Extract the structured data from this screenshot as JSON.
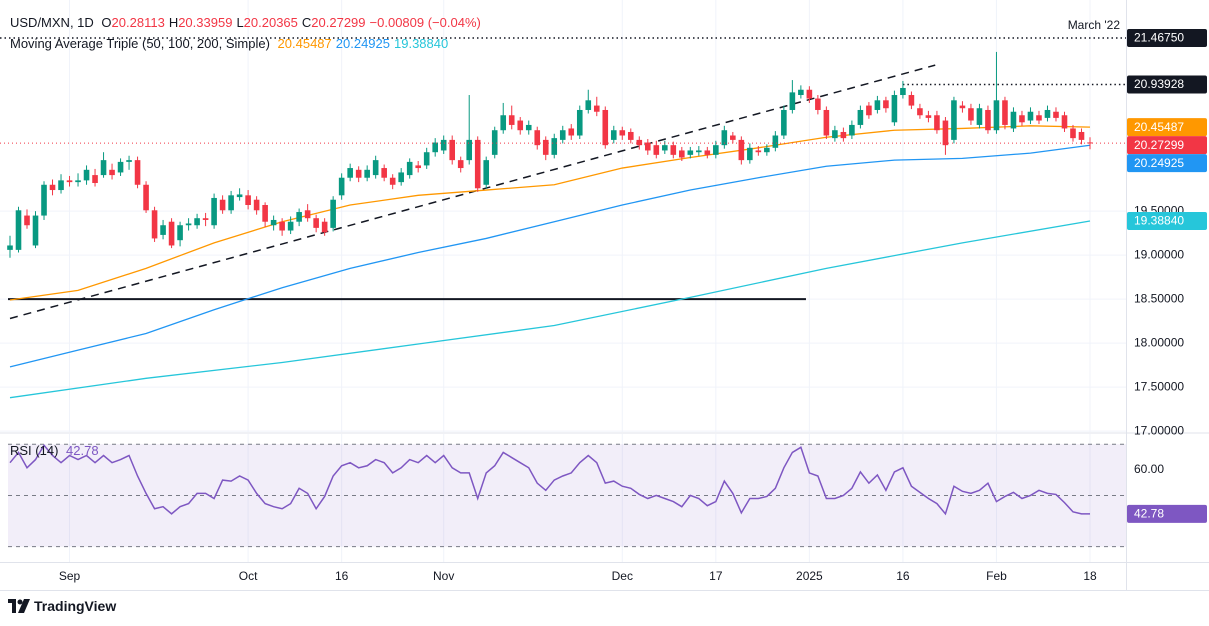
{
  "chart_data": {
    "type": "candlestick",
    "header": {
      "symbol": "USD/MXN, 1D",
      "keys": [
        "O",
        "H",
        "L",
        "C"
      ],
      "change": "−0.00809 (−0.04%)"
    },
    "categories": [
      null,
      null,
      null,
      null,
      null,
      null,
      null,
      "Sep",
      null,
      null,
      null,
      null,
      null,
      null,
      null,
      null,
      null,
      null,
      null,
      null,
      null,
      null,
      null,
      null,
      null,
      null,
      null,
      null,
      "Oct",
      null,
      null,
      null,
      null,
      null,
      null,
      null,
      null,
      null,
      null,
      "16",
      null,
      null,
      null,
      null,
      null,
      null,
      null,
      null,
      null,
      null,
      null,
      "Nov",
      null,
      null,
      null,
      null,
      null,
      null,
      null,
      null,
      null,
      null,
      null,
      null,
      null,
      null,
      null,
      null,
      null,
      null,
      null,
      null,
      "Dec",
      null,
      null,
      null,
      null,
      null,
      null,
      null,
      null,
      null,
      null,
      "17",
      null,
      null,
      null,
      null,
      null,
      null,
      null,
      null,
      null,
      null,
      "2025",
      null,
      null,
      null,
      null,
      null,
      null,
      null,
      null,
      null,
      null,
      "16",
      null,
      null,
      null,
      null,
      null,
      null,
      null,
      null,
      null,
      null,
      "Feb",
      null,
      null,
      null,
      null,
      null,
      null,
      null,
      null,
      null,
      null,
      "18"
    ],
    "open": [
      19.06,
      19.06,
      19.45,
      19.11,
      19.45,
      19.8,
      19.74,
      19.85,
      19.83,
      19.85,
      19.91,
      19.91,
      19.97,
      19.94,
      20.06,
      20.08,
      19.8,
      19.51,
      19.23,
      19.38,
      19.17,
      19.34,
      19.34,
      19.42,
      19.34,
      19.63,
      19.51,
      19.66,
      19.68,
      19.63,
      19.57,
      19.34,
      19.38,
      19.28,
      19.38,
      19.51,
      19.42,
      19.38,
      19.31,
      19.68,
      19.88,
      19.97,
      19.88,
      19.91,
      19.99,
      19.88,
      19.83,
      19.91,
      20.02,
      20.02,
      20.17,
      20.19,
      20.31,
      20.08,
      20.08,
      20.31,
      19.8,
      20.14,
      20.42,
      20.59,
      20.53,
      20.42,
      20.42,
      20.31,
      20.14,
      20.31,
      20.44,
      20.36,
      20.65,
      20.7,
      20.65,
      20.31,
      20.42,
      20.4,
      20.31,
      20.28,
      20.25,
      20.19,
      20.25,
      20.19,
      20.14,
      20.17,
      20.19,
      20.14,
      20.25,
      20.36,
      20.31,
      20.08,
      20.19,
      20.17,
      20.22,
      20.36,
      20.65,
      20.82,
      20.88,
      20.78,
      20.65,
      20.33,
      20.4,
      20.36,
      20.48,
      20.7,
      20.65,
      20.76,
      20.51,
      20.82,
      20.82,
      20.67,
      20.59,
      20.59,
      20.53,
      20.31,
      20.7,
      20.67,
      20.48,
      20.65,
      20.42,
      20.76,
      20.44,
      20.59,
      20.53,
      20.59,
      20.56,
      20.63,
      20.59,
      20.44,
      20.4,
      20.28113
    ],
    "high": [
      19.22,
      19.55,
      19.52,
      19.5,
      19.84,
      19.86,
      19.92,
      19.9,
      19.93,
      20.02,
      19.98,
      20.17,
      20.04,
      20.1,
      20.13,
      20.12,
      19.84,
      19.55,
      19.4,
      19.42,
      19.38,
      19.42,
      19.47,
      19.48,
      19.7,
      19.68,
      19.73,
      19.76,
      19.74,
      19.67,
      19.6,
      19.45,
      19.42,
      19.44,
      19.53,
      19.58,
      19.46,
      19.42,
      19.67,
      19.93,
      20.04,
      20.01,
      20.02,
      20.13,
      20.03,
      19.92,
      19.99,
      20.1,
      20.07,
      20.22,
      20.33,
      20.36,
      20.36,
      20.12,
      20.82,
      20.35,
      20.12,
      20.46,
      20.73,
      20.7,
      20.57,
      20.53,
      20.46,
      20.35,
      20.38,
      20.47,
      20.49,
      20.7,
      20.88,
      20.8,
      20.69,
      20.47,
      20.46,
      20.44,
      20.35,
      20.32,
      20.3,
      20.3,
      20.29,
      20.23,
      20.23,
      20.24,
      20.23,
      20.3,
      20.47,
      20.4,
      20.35,
      20.27,
      20.24,
      20.26,
      20.41,
      20.7,
      20.99,
      20.93,
      20.92,
      20.82,
      20.69,
      20.47,
      20.45,
      20.53,
      20.7,
      20.74,
      20.81,
      20.8,
      20.87,
      20.98,
      20.86,
      20.72,
      20.64,
      20.64,
      20.57,
      20.8,
      20.75,
      20.72,
      20.72,
      20.7,
      21.31,
      20.8,
      20.68,
      20.64,
      20.68,
      20.64,
      20.7,
      20.68,
      20.63,
      20.48,
      20.44,
      20.33959
    ],
    "low": [
      18.97,
      19.03,
      19.3,
      19.08,
      19.4,
      19.68,
      19.7,
      19.78,
      19.78,
      19.8,
      19.78,
      19.88,
      19.86,
      19.9,
      19.97,
      19.76,
      19.48,
      19.15,
      19.18,
      19.08,
      19.1,
      19.28,
      19.3,
      19.33,
      19.3,
      19.47,
      19.47,
      19.62,
      19.52,
      19.46,
      19.32,
      19.28,
      19.22,
      19.24,
      19.33,
      19.38,
      19.26,
      19.22,
      19.27,
      19.63,
      19.84,
      19.83,
      19.84,
      19.87,
      19.84,
      19.75,
      19.79,
      19.87,
      19.94,
      19.98,
      20.12,
      20.15,
      20.03,
      19.94,
      20.03,
      19.72,
      19.76,
      20.1,
      20.38,
      20.43,
      20.37,
      20.37,
      20.2,
      20.08,
      20.1,
      20.27,
      20.31,
      20.32,
      20.61,
      20.58,
      20.21,
      20.27,
      20.31,
      20.27,
      20.2,
      20.14,
      20.1,
      20.15,
      20.1,
      20.07,
      20.1,
      20.13,
      20.1,
      20.1,
      20.21,
      20.27,
      20.03,
      20.04,
      20.13,
      20.13,
      20.18,
      20.32,
      20.61,
      20.78,
      20.73,
      20.6,
      20.32,
      20.29,
      20.29,
      20.32,
      20.44,
      20.55,
      20.61,
      20.62,
      20.47,
      20.78,
      20.66,
      20.55,
      20.51,
      20.38,
      20.14,
      20.27,
      20.62,
      20.48,
      20.44,
      20.38,
      20.38,
      20.43,
      20.4,
      20.47,
      20.49,
      20.49,
      20.52,
      20.52,
      20.4,
      20.29,
      20.26,
      20.20365
    ],
    "close": [
      19.11,
      19.51,
      19.34,
      19.45,
      19.8,
      19.74,
      19.85,
      19.83,
      19.85,
      19.97,
      19.82,
      20.08,
      19.91,
      20.06,
      20.08,
      19.8,
      19.51,
      19.19,
      19.34,
      19.11,
      19.34,
      19.36,
      19.42,
      19.4,
      19.65,
      19.51,
      19.68,
      19.69,
      19.57,
      19.51,
      19.38,
      19.4,
      19.28,
      19.38,
      19.49,
      19.42,
      19.31,
      19.26,
      19.63,
      19.88,
      19.99,
      19.88,
      19.97,
      20.08,
      19.88,
      19.8,
      19.94,
      20.06,
      19.99,
      20.17,
      20.28,
      20.31,
      20.08,
      19.99,
      20.31,
      19.76,
      20.08,
      20.42,
      20.59,
      20.48,
      20.42,
      20.48,
      20.25,
      20.14,
      20.33,
      20.42,
      20.36,
      20.65,
      20.76,
      20.63,
      20.25,
      20.42,
      20.36,
      20.31,
      20.25,
      20.19,
      20.14,
      20.25,
      20.14,
      20.11,
      20.19,
      20.19,
      20.14,
      20.25,
      20.42,
      20.31,
      20.08,
      20.22,
      20.17,
      20.22,
      20.36,
      20.65,
      20.85,
      20.88,
      20.78,
      20.65,
      20.36,
      20.42,
      20.33,
      20.48,
      20.65,
      20.59,
      20.76,
      20.67,
      20.82,
      20.9,
      20.7,
      20.59,
      20.56,
      20.42,
      20.25,
      20.76,
      20.67,
      20.53,
      20.67,
      20.42,
      20.76,
      20.48,
      20.63,
      20.51,
      20.63,
      20.53,
      20.65,
      20.56,
      20.44,
      20.33,
      20.31,
      20.27299
    ],
    "up_color": "#089981",
    "down_color": "#f23645",
    "ylim": [
      16.99,
      21.9
    ],
    "yticks": [
      {
        "value": 17,
        "label": "17.00000"
      },
      {
        "value": 17.5,
        "label": "17.50000"
      },
      {
        "value": 18,
        "label": "18.00000"
      },
      {
        "value": 18.5,
        "label": "18.50000"
      },
      {
        "value": 19,
        "label": "19.00000"
      },
      {
        "value": 19.5,
        "label": "19.50000"
      }
    ],
    "grid": true,
    "moving_average": {
      "title": "Moving Average Triple (50, 100, 200, Simple)",
      "series": [
        {
          "color": "#ff9800",
          "x": [
            0,
            8,
            16,
            24,
            32,
            40,
            48,
            56,
            64,
            72,
            80,
            88,
            96,
            104,
            112,
            120,
            127
          ],
          "values": [
            18.49,
            18.6,
            18.85,
            19.14,
            19.38,
            19.57,
            19.68,
            19.74,
            19.8,
            19.99,
            20.11,
            20.22,
            20.34,
            20.42,
            20.44,
            20.47,
            20.45487
          ],
          "value_labels": [
            null,
            null,
            null,
            null,
            null,
            null,
            null,
            null,
            null,
            null,
            null,
            null,
            null,
            null,
            null,
            null,
            "20.45487"
          ]
        },
        {
          "color": "#2196f3",
          "x": [
            0,
            8,
            16,
            24,
            32,
            40,
            48,
            56,
            64,
            72,
            80,
            88,
            96,
            104,
            112,
            120,
            127
          ],
          "values": [
            17.73,
            17.92,
            18.11,
            18.38,
            18.63,
            18.85,
            19.03,
            19.19,
            19.38,
            19.57,
            19.74,
            19.88,
            20.01,
            20.08,
            20.1,
            20.16,
            20.24925
          ],
          "value_labels": [
            null,
            null,
            null,
            null,
            null,
            null,
            null,
            null,
            null,
            null,
            null,
            null,
            null,
            null,
            null,
            null,
            "20.24925"
          ]
        },
        {
          "color": "#26c6da",
          "x": [
            0,
            16,
            32,
            48,
            64,
            80,
            96,
            112,
            127
          ],
          "values": [
            17.38,
            17.6,
            17.78,
            17.99,
            18.2,
            18.52,
            18.85,
            19.14,
            19.3884
          ],
          "value_labels": [
            null,
            null,
            null,
            null,
            null,
            null,
            null,
            null,
            "19.38840"
          ]
        }
      ]
    },
    "price_lines": [
      {
        "value": 21.4675,
        "label": "21.46750",
        "text": "March '22",
        "color": "#131722"
      },
      {
        "value": 20.93928,
        "label": "20.93928",
        "color": "#131722",
        "x": 105
      }
    ],
    "trendline": {
      "x": [
        0,
        108.8
      ],
      "values": [
        18.28,
        21.16
      ]
    },
    "support": {
      "x": [
        0,
        93.6
      ],
      "value": 18.5
    },
    "rsi": {
      "title": "RSI (14)",
      "color": "#7e57c2",
      "ylim": [
        24,
        74
      ],
      "yticks": [
        {
          "value": 60,
          "label": "60.00"
        }
      ],
      "levels": [
        70,
        50,
        30
      ],
      "values": [
        62.8,
        66.8,
        60.8,
        64,
        69.6,
        65.6,
        62.8,
        65.6,
        64,
        65.6,
        62.8,
        65.6,
        62.8,
        64,
        65.6,
        57.6,
        50.8,
        44.8,
        45.6,
        42.8,
        45.6,
        46.8,
        50.8,
        50.8,
        48.8,
        56,
        55.6,
        57.6,
        56,
        50.8,
        46.8,
        45.6,
        44.8,
        46.8,
        52.8,
        50.8,
        44.8,
        49.6,
        57.6,
        61.6,
        62.8,
        60.8,
        61.6,
        64,
        62.8,
        58.8,
        60.8,
        64,
        62.8,
        65.6,
        62.8,
        65.6,
        60.8,
        58.8,
        58.8,
        48.8,
        58.8,
        61.6,
        66.8,
        64.8,
        62.8,
        60.8,
        54.8,
        52,
        56,
        57.6,
        58.8,
        62.8,
        65.6,
        62.8,
        54.8,
        55.6,
        53.6,
        52.8,
        50.4,
        48.8,
        50,
        48.8,
        47.6,
        45.6,
        50,
        48.8,
        46,
        47.6,
        55.6,
        50.8,
        43.2,
        48.8,
        48.8,
        49.6,
        52.8,
        60.8,
        66.8,
        68.8,
        58.8,
        57.6,
        48.8,
        48.8,
        50,
        52.8,
        59.2,
        54.8,
        58,
        52,
        59.2,
        60.8,
        53.6,
        51.2,
        48.8,
        46.8,
        42.8,
        53.6,
        51.6,
        50.8,
        52,
        54.8,
        47.6,
        49.6,
        51.2,
        48.8,
        50,
        52,
        50.8,
        50.4,
        47.2,
        43.6,
        42.8,
        42.78
      ]
    }
  },
  "footer": {
    "brand": "TradingView"
  }
}
